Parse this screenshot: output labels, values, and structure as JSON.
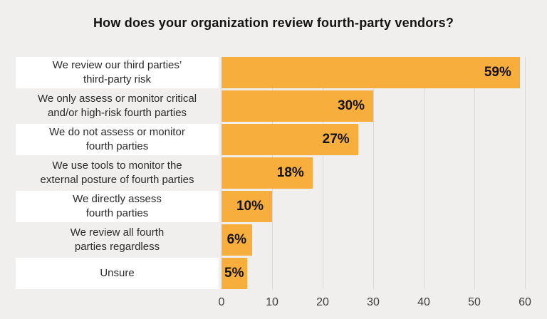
{
  "title": "How does your organization review fourth-party vendors?",
  "colors": {
    "page_background": "#F0EFED",
    "bar": "#F8AE3C",
    "label_box": "#FFFFFF",
    "gridline": "#DAD9D7",
    "title_text": "#131313",
    "category_text": "#2B2B2B",
    "value_text": "#121212",
    "axis_text": "#3C3C3C"
  },
  "chart_data": {
    "type": "bar",
    "orientation": "horizontal",
    "title": "How does your organization review fourth-party vendors?",
    "categories": [
      "We review our third parties’ third-party risk",
      "We only assess or monitor critical and/or high-risk fourth parties",
      "We do not assess or monitor fourth parties",
      "We use tools to monitor the external posture of fourth parties",
      "We directly assess fourth parties",
      "We review all fourth parties regardless",
      "Unsure"
    ],
    "category_lines": [
      [
        "We review our third parties’",
        "third-party risk"
      ],
      [
        "We only assess or monitor critical",
        "and/or high-risk fourth parties"
      ],
      [
        "We do not assess or monitor",
        "fourth parties"
      ],
      [
        "We use tools to monitor the",
        "external posture of fourth parties"
      ],
      [
        "We directly assess",
        "fourth parties"
      ],
      [
        "We review all fourth",
        "parties regardless"
      ],
      [
        "Unsure"
      ]
    ],
    "values": [
      59,
      30,
      27,
      18,
      10,
      6,
      5
    ],
    "value_labels": [
      "59%",
      "30%",
      "27%",
      "18%",
      "10%",
      "6%",
      "5%"
    ],
    "x_ticks": [
      0,
      10,
      20,
      30,
      40,
      50,
      60
    ],
    "xlim": [
      0,
      60
    ],
    "xlabel": "",
    "ylabel": "",
    "grid": "vertical",
    "legend_position": "none",
    "value_label_position": "inside-right of bar (centered when bar is narrow)",
    "row_label_boxes": "white background boxes on alternating category rows (1st, 3rd, 5th, 7th)"
  }
}
